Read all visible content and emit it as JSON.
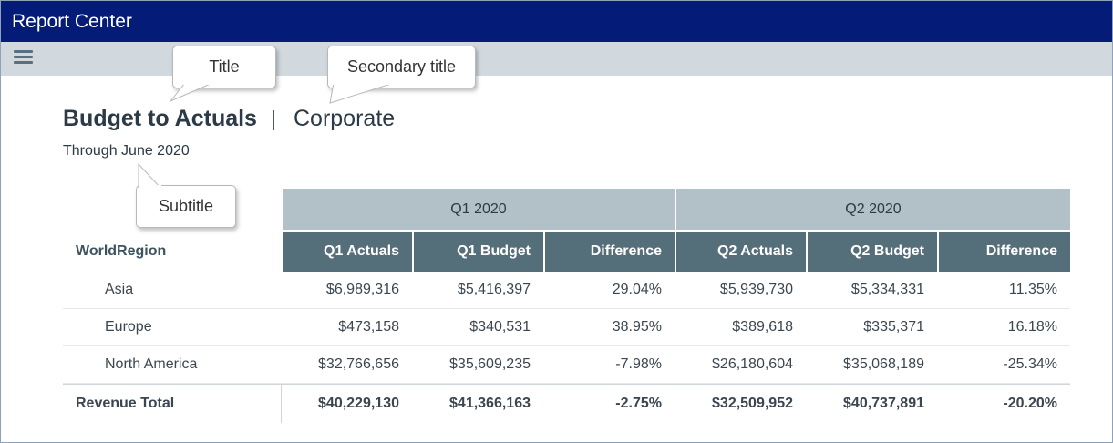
{
  "window": {
    "title": "Report Center"
  },
  "report": {
    "title": "Budget to Actuals",
    "secondary_title": "Corporate",
    "subtitle": "Through June 2020"
  },
  "callouts": {
    "title": "Title",
    "secondary_title": "Secondary title",
    "subtitle": "Subtitle"
  },
  "table": {
    "row_header": "WorldRegion",
    "groups": [
      "Q1 2020",
      "Q2 2020"
    ],
    "columns": [
      "Q1 Actuals",
      "Q1 Budget",
      "Difference",
      "Q2 Actuals",
      "Q2 Budget",
      "Difference"
    ],
    "rows": [
      {
        "label": "Asia",
        "values": [
          "$6,989,316",
          "$5,416,397",
          "29.04%",
          "$5,939,730",
          "$5,334,331",
          "11.35%"
        ]
      },
      {
        "label": "Europe",
        "values": [
          "$473,158",
          "$340,531",
          "38.95%",
          "$389,618",
          "$335,371",
          "16.18%"
        ]
      },
      {
        "label": "North America",
        "values": [
          "$32,766,656",
          "$35,609,235",
          "-7.98%",
          "$26,180,604",
          "$35,068,189",
          "-25.34%"
        ]
      }
    ],
    "total": {
      "label": "Revenue Total",
      "values": [
        "$40,229,130",
        "$41,366,163",
        "-2.75%",
        "$32,509,952",
        "$40,737,891",
        "-20.20%"
      ]
    }
  },
  "colors": {
    "titlebar": "#041b78",
    "toolbar": "#d1d9df",
    "group_header": "#b2c0c8",
    "column_header": "#546e7a"
  },
  "icons": {
    "menu": "hamburger-menu-icon"
  }
}
